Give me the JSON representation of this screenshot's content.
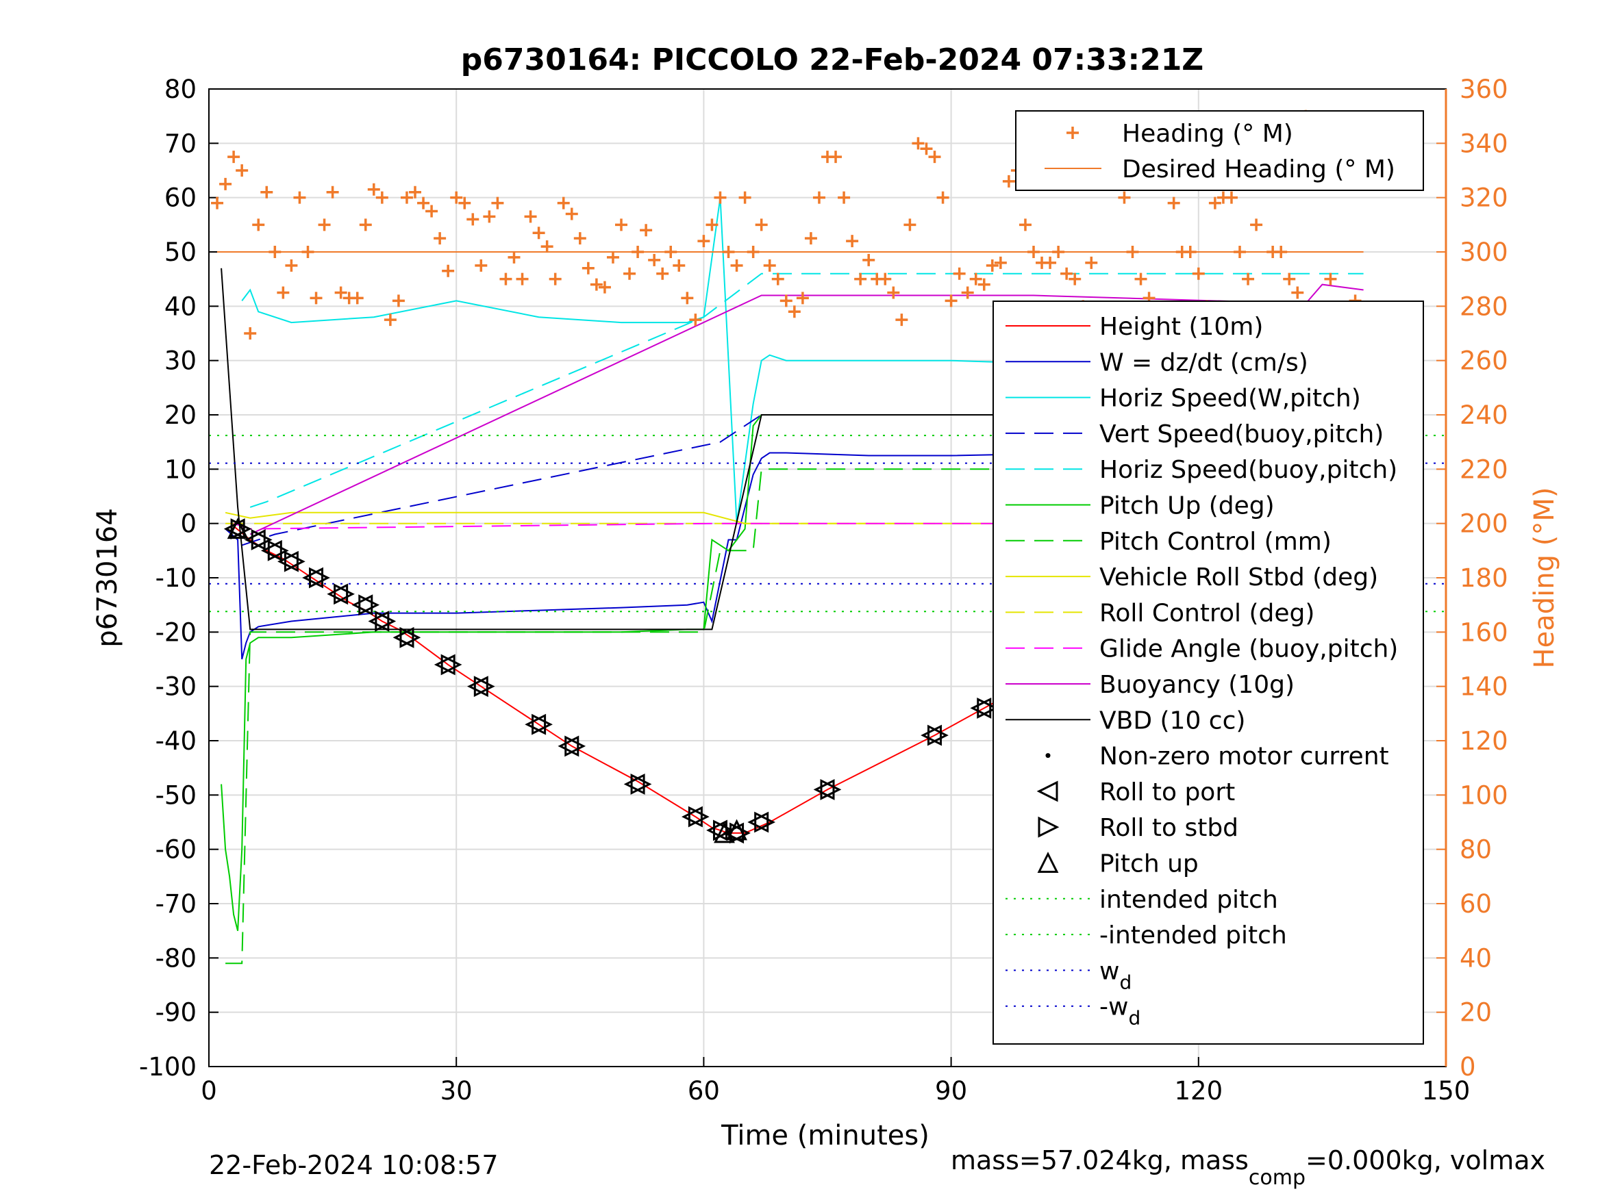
{
  "chart_data": {
    "type": "line",
    "title": "p6730164: PICCOLO 22-Feb-2024 07:33:21Z",
    "xlabel": "Time (minutes)",
    "ylabel": "p6730164",
    "y2label": "Heading (°M)",
    "xlim": [
      0,
      150
    ],
    "ylim": [
      -100,
      80
    ],
    "y2lim": [
      0,
      360
    ],
    "xticks": [
      0,
      30,
      60,
      90,
      120,
      150
    ],
    "yticks": [
      80,
      70,
      60,
      50,
      40,
      30,
      20,
      10,
      0,
      -10,
      -20,
      -30,
      -40,
      -50,
      -60,
      -70,
      -80,
      -90,
      -100
    ],
    "y2ticks": [
      360,
      340,
      320,
      300,
      280,
      260,
      240,
      220,
      200,
      180,
      160,
      140,
      120,
      100,
      80,
      60,
      40,
      20,
      0
    ],
    "grid": true,
    "legend_heading": [
      {
        "label": "Heading (° M)",
        "color": "#f07a2a",
        "style": "plus"
      },
      {
        "label": "Desired Heading (° M)",
        "color": "#f07a2a",
        "style": "solid"
      }
    ],
    "legend_main": [
      {
        "label": "Height (10m)",
        "color": "#ff0000",
        "style": "solid"
      },
      {
        "label": "W = dz/dt (cm/s)",
        "color": "#0000cc",
        "style": "solid"
      },
      {
        "label": "Horiz Speed(W,pitch)",
        "color": "#00e5e5",
        "style": "solid"
      },
      {
        "label": "Vert Speed(buoy,pitch)",
        "color": "#0000cc",
        "style": "dash"
      },
      {
        "label": "Horiz Speed(buoy,pitch)",
        "color": "#00e5e5",
        "style": "dash"
      },
      {
        "label": "Pitch Up (deg)",
        "color": "#00cc00",
        "style": "solid"
      },
      {
        "label": "Pitch Control (mm)",
        "color": "#00cc00",
        "style": "dash"
      },
      {
        "label": "Vehicle Roll Stbd (deg)",
        "color": "#e5e500",
        "style": "solid"
      },
      {
        "label": "Roll Control (deg)",
        "color": "#e5e500",
        "style": "dash"
      },
      {
        "label": "Glide Angle (buoy,pitch)",
        "color": "#ff00ff",
        "style": "dash"
      },
      {
        "label": "Buoyancy (10g)",
        "color": "#cc00cc",
        "style": "solid"
      },
      {
        "label": "VBD (10 cc)",
        "color": "#000000",
        "style": "solid"
      },
      {
        "label": "Non-zero motor current",
        "color": "#000000",
        "style": "dot"
      },
      {
        "label": "Roll to port",
        "color": "#000000",
        "style": "tri-left"
      },
      {
        "label": "Roll to stbd",
        "color": "#000000",
        "style": "tri-right"
      },
      {
        "label": "Pitch up",
        "color": "#000000",
        "style": "tri-up"
      },
      {
        "label": "intended pitch",
        "color": "#00cc00",
        "style": "dotted"
      },
      {
        "label": "-intended pitch",
        "color": "#00cc00",
        "style": "dotted"
      },
      {
        "label": "w_d",
        "color": "#0000cc",
        "style": "dotted"
      },
      {
        "label": "-w_d",
        "color": "#0000cc",
        "style": "dotted"
      }
    ],
    "series": [
      {
        "name": "Height (10m)",
        "axis": "left",
        "x": [
          3,
          5,
          7,
          9,
          11,
          13,
          15,
          17,
          19,
          21,
          23,
          25,
          29,
          33,
          40,
          44,
          52,
          59,
          61,
          63,
          65,
          68,
          75,
          88,
          94,
          100,
          112,
          121,
          126,
          131,
          135,
          138,
          140.5
        ],
        "y": [
          -0.5,
          -3,
          -5,
          -6.5,
          -8.5,
          -10.5,
          -12.5,
          -14.5,
          -16,
          -18,
          -19.5,
          -21.5,
          -26,
          -30,
          -37,
          -41,
          -47.5,
          -54,
          -56,
          -57,
          -57,
          -55,
          -49,
          -39,
          -34,
          -29,
          -21,
          -14,
          -10,
          -6.5,
          -3.5,
          -1,
          0
        ]
      },
      {
        "name": "W = dz/dt (cm/s)",
        "axis": "left",
        "x": [
          2,
          3.5,
          4,
          4.5,
          5,
          6,
          10,
          20,
          30,
          40,
          50,
          58,
          60,
          61,
          63,
          64,
          66,
          67,
          68,
          70,
          80,
          90,
          100,
          110,
          120,
          130,
          140
        ],
        "y": [
          -1,
          -3,
          -25,
          -22,
          -20,
          -19,
          -18,
          -16.5,
          -16.5,
          -16,
          -15.5,
          -15,
          -14.5,
          -18,
          -3,
          -3,
          9,
          12,
          13,
          13,
          12.5,
          12.5,
          12.8,
          12.5,
          12,
          11.5,
          11.5
        ]
      },
      {
        "name": "Horiz Speed(W,pitch)",
        "axis": "left",
        "x": [
          4,
          5,
          6,
          10,
          20,
          30,
          40,
          50,
          58,
          60,
          62,
          64,
          66,
          67,
          68,
          70,
          80,
          90,
          100,
          110,
          120,
          130,
          140
        ],
        "y": [
          41,
          43,
          39,
          37,
          38,
          41,
          38,
          37,
          37,
          38,
          60,
          0,
          22,
          30,
          31,
          30,
          30,
          30,
          29.5,
          30,
          29,
          30,
          28
        ]
      },
      {
        "name": "Vert Speed(buoy,pitch)",
        "axis": "left",
        "x": [
          4,
          8,
          62,
          67,
          140
        ],
        "y": [
          -4,
          -2,
          15,
          20,
          20
        ]
      },
      {
        "name": "Horiz Speed(buoy,pitch)",
        "axis": "left",
        "x": [
          5,
          7,
          60,
          67,
          140
        ],
        "y": [
          3,
          4,
          38,
          46,
          46
        ]
      },
      {
        "name": "Pitch Up (deg)",
        "axis": "left",
        "x": [
          1.5,
          2,
          2.5,
          3,
          3.5,
          4,
          4.5,
          5,
          6,
          10,
          20,
          30,
          40,
          50,
          58,
          60,
          61,
          62,
          63,
          64,
          65,
          66,
          67,
          70,
          80,
          90,
          100,
          110,
          120,
          130,
          140
        ],
        "y": [
          -48,
          -60,
          -65,
          -72,
          -75,
          -60,
          -25,
          -22,
          -21,
          -21,
          -20,
          -20,
          -20,
          -20,
          -19.5,
          -19.5,
          -3,
          -4,
          -5,
          -3,
          -1,
          18,
          20,
          20,
          20,
          20,
          20,
          20,
          20,
          20,
          20
        ]
      },
      {
        "name": "Pitch Control (mm)",
        "axis": "left",
        "x": [
          2,
          4,
          5,
          60,
          62,
          66,
          67,
          140
        ],
        "y": [
          -81,
          -81,
          -20,
          -20,
          -5,
          -5,
          10,
          10
        ]
      },
      {
        "name": "Vehicle Roll Stbd (deg)",
        "axis": "left",
        "x": [
          2,
          5,
          10,
          20,
          30,
          40,
          50,
          60,
          65,
          70,
          80,
          90,
          100,
          110,
          120,
          130,
          140
        ],
        "y": [
          2,
          1,
          2,
          2,
          2,
          2,
          2,
          2,
          0,
          0,
          0,
          0,
          0,
          0,
          0,
          0,
          0
        ]
      },
      {
        "name": "Roll Control (deg)",
        "axis": "left",
        "x": [
          2,
          10,
          20,
          30,
          40,
          50,
          60,
          65,
          70,
          80,
          90,
          100,
          110,
          120,
          130,
          140
        ],
        "y": [
          0,
          0,
          0,
          0,
          0,
          0,
          0,
          0,
          0,
          0,
          0,
          0,
          0,
          0,
          0,
          0
        ]
      },
      {
        "name": "Glide Angle (buoy,pitch)",
        "axis": "left",
        "x": [
          3,
          5,
          61,
          63,
          140
        ],
        "y": [
          0,
          -1,
          0,
          0,
          0
        ]
      },
      {
        "name": "Buoyancy (10g)",
        "axis": "left",
        "x": [
          5,
          67,
          100,
          133,
          135,
          140
        ],
        "y": [
          -2,
          42,
          42,
          40.5,
          44,
          43
        ]
      },
      {
        "name": "VBD (10 cc)",
        "axis": "left",
        "x": [
          1.5,
          3.5,
          5,
          60.8,
          61,
          67,
          68,
          130,
          140
        ],
        "y": [
          47,
          3,
          -19.5,
          -19.5,
          -19.5,
          20,
          20,
          20,
          26
        ]
      },
      {
        "name": "Heading (° M)",
        "axis": "right",
        "x": [
          1,
          2,
          3,
          4,
          5,
          6,
          7,
          8,
          9,
          10,
          11,
          12,
          13,
          14,
          15,
          16,
          17,
          18,
          19,
          20,
          21,
          22,
          23,
          24,
          25,
          26,
          27,
          28,
          29,
          30,
          31,
          32,
          33,
          34,
          35,
          36,
          37,
          38,
          39,
          40,
          41,
          42,
          43,
          44,
          45,
          46,
          47,
          48,
          49,
          50,
          51,
          52,
          53,
          54,
          55,
          56,
          57,
          58,
          59,
          60,
          61,
          62,
          63,
          64,
          65,
          66,
          67,
          68,
          69,
          70,
          71,
          72,
          73,
          74,
          75,
          76,
          77,
          78,
          79,
          80,
          81,
          82,
          83,
          84,
          85,
          86,
          87,
          88,
          89,
          90,
          91,
          92,
          93,
          94,
          95,
          96,
          97,
          98,
          99,
          100,
          101,
          102,
          103,
          104,
          105,
          106,
          107,
          108,
          109,
          110,
          111,
          112,
          113,
          114,
          115,
          116,
          117,
          118,
          119,
          120,
          121,
          122,
          123,
          124,
          125,
          126,
          127,
          128,
          129,
          130,
          131,
          132,
          133,
          134,
          135,
          136,
          137,
          138,
          139,
          140
        ],
        "y": [
          318,
          325,
          335,
          330,
          270,
          310,
          322,
          300,
          285,
          295,
          320,
          300,
          283,
          310,
          322,
          285,
          283,
          283,
          310,
          323,
          320,
          275,
          282,
          320,
          322,
          318,
          315,
          305,
          293,
          320,
          318,
          312,
          295,
          313,
          318,
          290,
          298,
          290,
          313,
          307,
          302,
          290,
          318,
          314,
          305,
          294,
          288,
          287,
          298,
          310,
          292,
          300,
          308,
          297,
          292,
          300,
          295,
          283,
          275,
          304,
          310,
          320,
          300,
          295,
          320,
          300,
          310,
          295,
          290,
          282,
          278,
          283,
          305,
          320,
          335,
          335,
          320,
          304,
          290,
          297,
          290,
          290,
          285,
          275,
          310,
          340,
          338,
          335,
          320,
          282,
          292,
          285,
          290,
          288,
          295,
          296,
          326,
          330,
          310,
          300,
          296,
          296,
          300,
          292,
          290,
          280,
          296,
          330,
          340,
          330,
          320,
          300,
          290,
          283,
          335,
          340,
          318,
          300,
          300,
          292,
          280,
          318,
          320,
          320,
          300,
          290,
          310,
          330,
          300,
          300,
          290,
          285,
          350,
          345,
          340,
          290,
          340,
          340,
          282,
          230
        ]
      },
      {
        "name": "Desired Heading (° M)",
        "axis": "right",
        "x": [
          1,
          2,
          3,
          40,
          70,
          100,
          130,
          140
        ],
        "y": [
          300,
          300,
          300,
          300,
          300,
          300,
          300,
          300
        ]
      },
      {
        "name": "intended pitch",
        "axis": "left",
        "x": [
          0,
          150
        ],
        "y": [
          16.2,
          16.2
        ]
      },
      {
        "name": "-intended pitch",
        "axis": "left",
        "x": [
          0,
          150
        ],
        "y": [
          -16.2,
          -16.2
        ]
      },
      {
        "name": "w_d",
        "axis": "left",
        "x": [
          0,
          150
        ],
        "y": [
          11.1,
          11.1
        ]
      },
      {
        "name": "-w_d",
        "axis": "left",
        "x": [
          0,
          150
        ],
        "y": [
          -11.1,
          -11.1
        ]
      }
    ],
    "markers": {
      "roll_to_port": {
        "x": [
          3.5,
          6,
          8,
          10,
          13,
          16,
          19,
          21,
          24,
          29,
          33,
          40,
          44,
          52,
          59,
          62,
          64,
          67,
          75,
          88,
          94,
          100,
          112,
          121,
          126,
          131,
          135,
          138,
          140.5
        ],
        "y": [
          -1,
          -3,
          -5,
          -7,
          -10,
          -13,
          -15,
          -18,
          -21,
          -26,
          -30,
          -37,
          -41,
          -48,
          -54,
          -56.5,
          -57,
          -55,
          -49,
          -39,
          -34,
          -29,
          -21,
          -14,
          -10,
          -6.5,
          -3.5,
          -1,
          0
        ]
      },
      "pitch_up": {
        "x": [
          3.5,
          62.5,
          64
        ],
        "y": [
          -1,
          -57,
          -56.5
        ]
      }
    }
  },
  "footer": {
    "timestamp": "22-Feb-2024 10:08:57",
    "mass_prefix": "mass=57.024kg, mass",
    "mass_sub": "comp",
    "mass_suffix": "=0.000kg, volmax"
  }
}
